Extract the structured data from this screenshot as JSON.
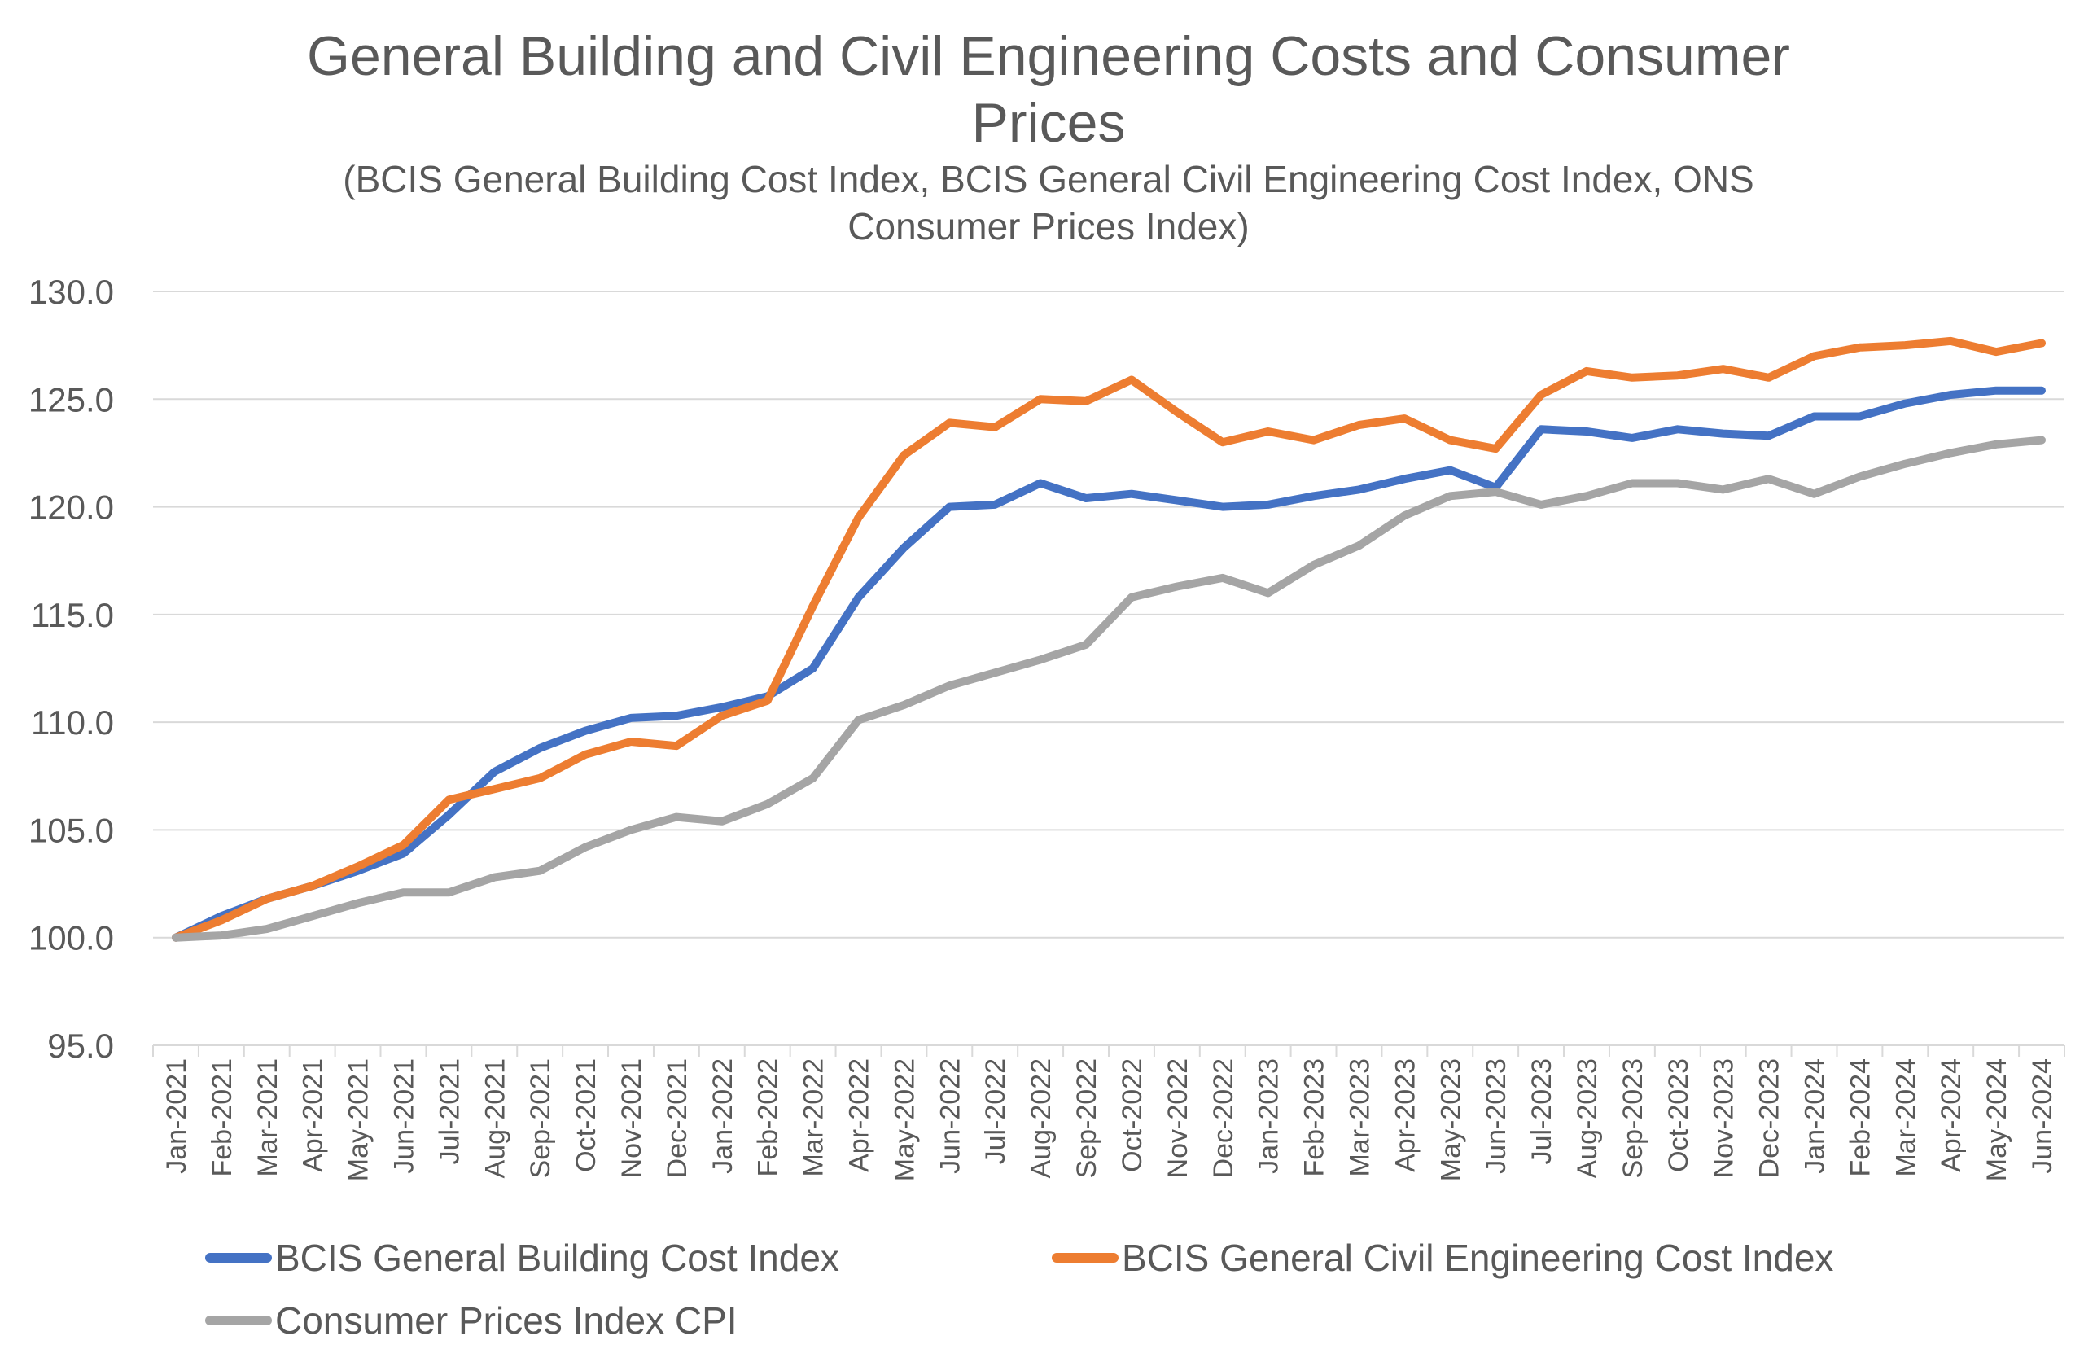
{
  "chart_data": {
    "type": "line",
    "title_lines": [
      "General Building and Civil Engineering Costs and Consumer",
      "Prices"
    ],
    "subtitle_lines": [
      "(BCIS General Building Cost Index, BCIS General Civil Engineering Cost Index, ONS",
      "Consumer Prices Index)"
    ],
    "xlabel": "",
    "ylabel": "",
    "ylim": [
      95,
      130
    ],
    "yticks": [
      "130.0",
      "125.0",
      "120.0",
      "115.0",
      "110.0",
      "105.0",
      "100.0",
      "95.0"
    ],
    "grid": true,
    "legend_position": "bottom",
    "categories": [
      "Jan-2021",
      "Feb-2021",
      "Mar-2021",
      "Apr-2021",
      "May-2021",
      "Jun-2021",
      "Jul-2021",
      "Aug-2021",
      "Sep-2021",
      "Oct-2021",
      "Nov-2021",
      "Dec-2021",
      "Jan-2022",
      "Feb-2022",
      "Mar-2022",
      "Apr-2022",
      "May-2022",
      "Jun-2022",
      "Jul-2022",
      "Aug-2022",
      "Sep-2022",
      "Oct-2022",
      "Nov-2022",
      "Dec-2022",
      "Jan-2023",
      "Feb-2023",
      "Mar-2023",
      "Apr-2023",
      "May-2023",
      "Jun-2023",
      "Jul-2023",
      "Aug-2023",
      "Sep-2023",
      "Oct-2023",
      "Nov-2023",
      "Dec-2023",
      "Jan-2024",
      "Feb-2024",
      "Mar-2024",
      "Apr-2024",
      "May-2024",
      "Jun-2024"
    ],
    "series": [
      {
        "name": "BCIS General Building Cost Index",
        "color": "#4472c4",
        "values": [
          100.0,
          101.0,
          101.8,
          102.4,
          103.1,
          103.9,
          105.7,
          107.7,
          108.8,
          109.6,
          110.2,
          110.3,
          110.7,
          111.2,
          112.5,
          115.8,
          118.1,
          120.0,
          120.1,
          121.1,
          120.4,
          120.6,
          120.3,
          120.0,
          120.1,
          120.5,
          120.8,
          121.3,
          121.7,
          120.9,
          123.6,
          123.5,
          123.2,
          123.6,
          123.4,
          123.3,
          124.2,
          124.2,
          124.8,
          125.2,
          125.4,
          125.4
        ]
      },
      {
        "name": "BCIS General Civil Engineering Cost Index",
        "color": "#ed7d31",
        "values": [
          100.0,
          100.8,
          101.8,
          102.4,
          103.3,
          104.3,
          106.4,
          106.9,
          107.4,
          108.5,
          109.1,
          108.9,
          110.3,
          111.0,
          115.4,
          119.5,
          122.4,
          123.9,
          123.7,
          125.0,
          124.9,
          125.9,
          124.4,
          123.0,
          123.5,
          123.1,
          123.8,
          124.1,
          123.1,
          122.7,
          125.2,
          126.3,
          126.0,
          126.1,
          126.4,
          126.0,
          127.0,
          127.4,
          127.5,
          127.7,
          127.2,
          127.6
        ]
      },
      {
        "name": "Consumer Prices Index CPI",
        "color": "#a5a5a5",
        "values": [
          100.0,
          100.1,
          100.4,
          101.0,
          101.6,
          102.1,
          102.1,
          102.8,
          103.1,
          104.2,
          105.0,
          105.6,
          105.4,
          106.2,
          107.4,
          110.1,
          110.8,
          111.7,
          112.3,
          112.9,
          113.6,
          115.8,
          116.3,
          116.7,
          116.0,
          117.3,
          118.2,
          119.6,
          120.5,
          120.7,
          120.1,
          120.5,
          121.1,
          121.1,
          120.8,
          121.3,
          120.6,
          121.4,
          122.0,
          122.5,
          122.9,
          123.1
        ]
      }
    ]
  }
}
